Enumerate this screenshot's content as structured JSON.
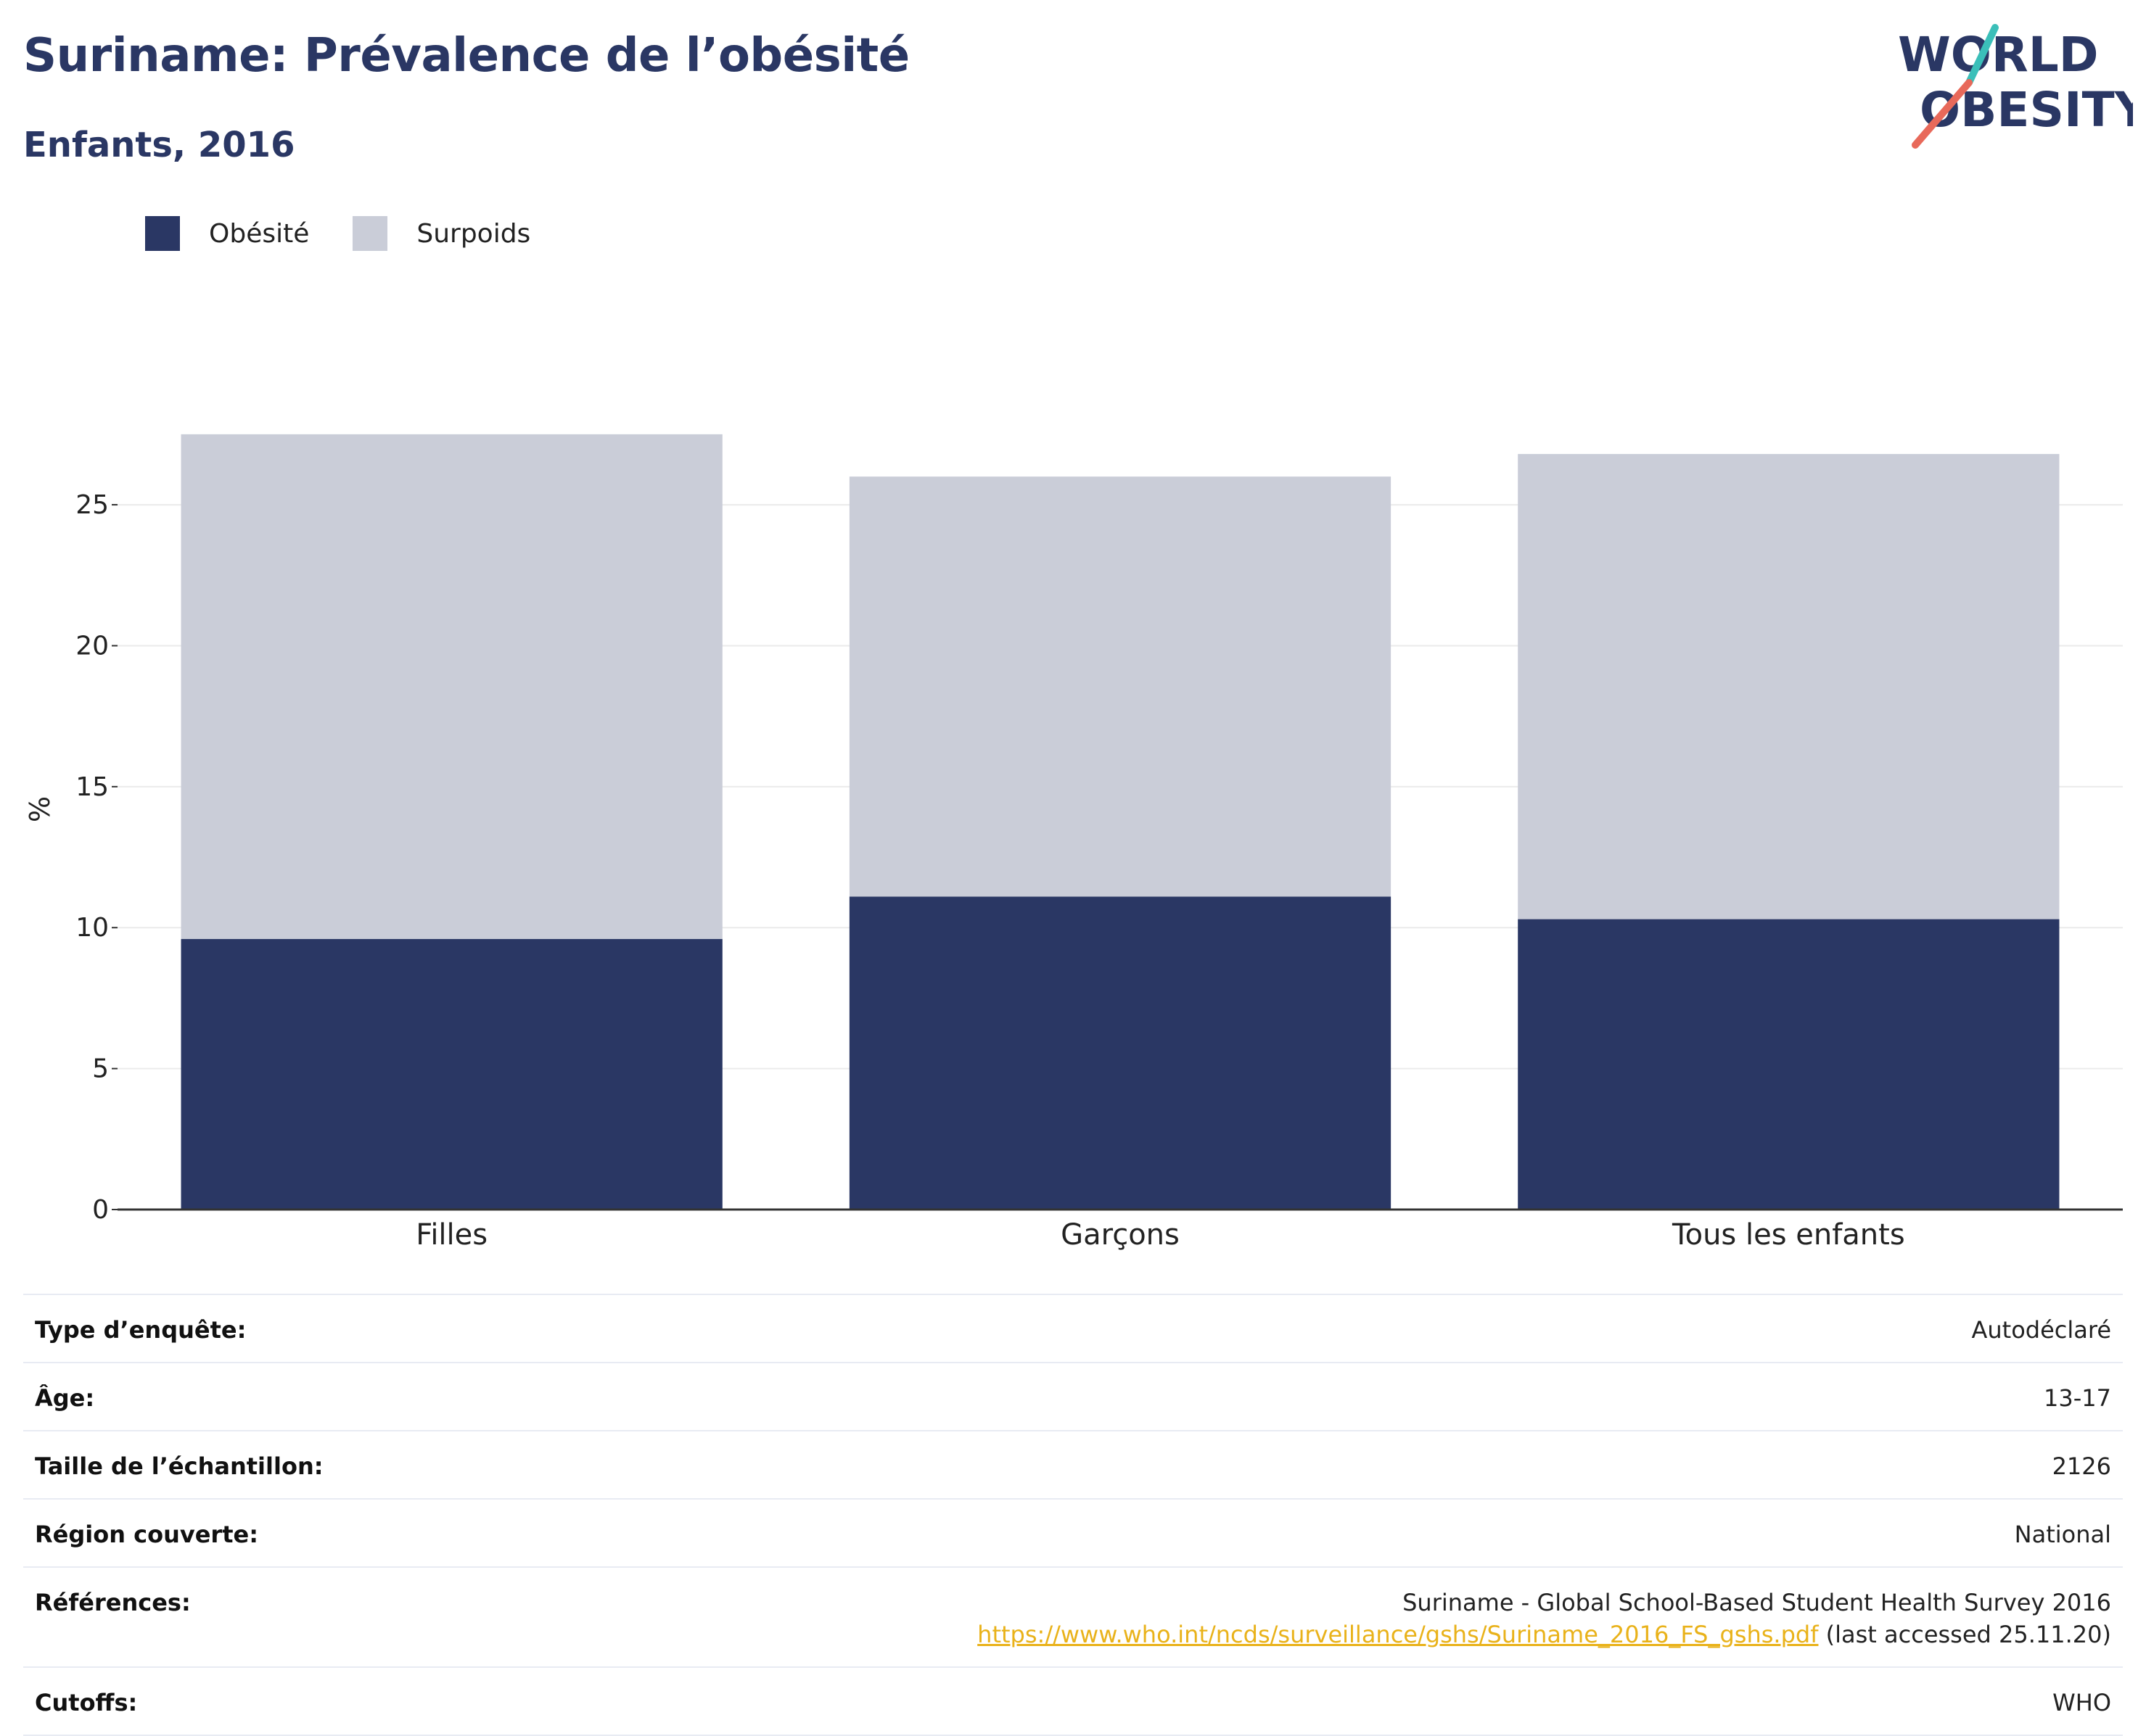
{
  "header": {
    "title": "Suriname: Prévalence de l’obésité",
    "subtitle": "Enfants, 2016"
  },
  "logo": {
    "line1": "WORLD",
    "line2": "OBESITY",
    "accent_teal": "#3bbfb9",
    "accent_coral": "#e8695a"
  },
  "chart_data": {
    "type": "bar",
    "stacked": true,
    "categories": [
      "Filles",
      "Garçons",
      "Tous les enfants"
    ],
    "series": [
      {
        "name": "Obésité",
        "values": [
          9.6,
          11.1,
          10.3
        ],
        "color": "#2a3764"
      },
      {
        "name": "Surpoids",
        "values": [
          17.9,
          14.9,
          16.5
        ],
        "color": "#cacdd8"
      }
    ],
    "title": "Suriname: Prévalence de l’obésité",
    "subtitle": "Enfants, 2016",
    "xlabel": "",
    "ylabel": "%",
    "ylim": [
      0,
      28.5
    ],
    "yticks": [
      0,
      5,
      10,
      15,
      20,
      25
    ],
    "grid": true,
    "legend": "top-left"
  },
  "info": {
    "rows": [
      {
        "label": "Type d’enquête:",
        "value": "Autodéclaré"
      },
      {
        "label": "Âge:",
        "value": "13-17"
      },
      {
        "label": "Taille de l’échantillon:",
        "value": "2126"
      },
      {
        "label": "Région couverte:",
        "value": "National"
      }
    ],
    "references": {
      "label": "Références:",
      "source": "Suriname - Global School-Based Student Health Survey 2016",
      "url": "https://www.who.int/ncds/surveillance/gshs/Suriname_2016_FS_gshs.pdf",
      "accessed": "(last accessed 25.11.20)"
    },
    "cutoffs": {
      "label": "Cutoffs:",
      "value": "WHO"
    }
  }
}
